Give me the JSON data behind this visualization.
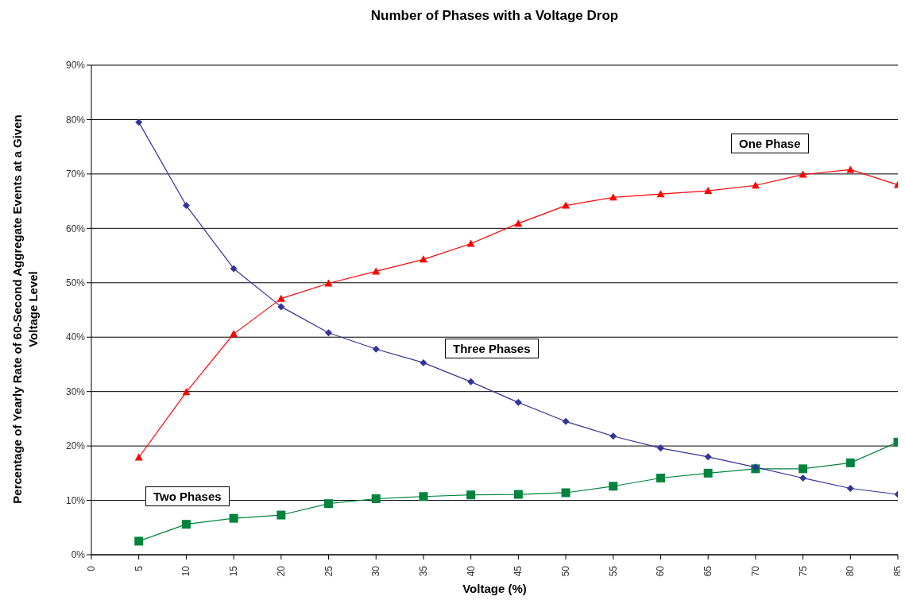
{
  "chart_data": {
    "type": "line",
    "title": "Number of Phases with a Voltage Drop",
    "xlabel": "Voltage (%)",
    "ylabel": "Percentage of Yearly Rate of 60-Second Aggregate Events at a Given Voltage Level",
    "x": [
      5,
      10,
      15,
      20,
      25,
      30,
      35,
      40,
      45,
      50,
      55,
      60,
      65,
      70,
      75,
      80,
      85
    ],
    "xlim": [
      0,
      85
    ],
    "xticks": [
      0,
      5,
      10,
      15,
      20,
      25,
      30,
      35,
      40,
      45,
      50,
      55,
      60,
      65,
      70,
      75,
      80,
      85
    ],
    "ylim": [
      0,
      90
    ],
    "yticks": [
      {
        "value": 0,
        "label": "0%"
      },
      {
        "value": 10,
        "label": "10%"
      },
      {
        "value": 20,
        "label": "20%"
      },
      {
        "value": 30,
        "label": "30%"
      },
      {
        "value": 40,
        "label": "40%"
      },
      {
        "value": 50,
        "label": "50%"
      },
      {
        "value": 60,
        "label": "60%"
      },
      {
        "value": 70,
        "label": "70%"
      },
      {
        "value": 80,
        "label": "80%"
      },
      {
        "value": 90,
        "label": "90%"
      }
    ],
    "grid": "y",
    "legend": false,
    "line_style": "solid",
    "series": [
      {
        "name": "One Phase",
        "color": "#ff0000",
        "marker": "triangle",
        "values": [
          17.9,
          29.9,
          40.6,
          47.1,
          49.9,
          52.1,
          54.3,
          57.2,
          60.9,
          64.2,
          65.7,
          66.3,
          66.9,
          67.9,
          69.9,
          70.8,
          68.0
        ]
      },
      {
        "name": "Three Phases",
        "color": "#333399",
        "marker": "diamond",
        "values": [
          79.5,
          64.2,
          52.6,
          45.6,
          40.8,
          37.8,
          35.3,
          31.8,
          28.0,
          24.5,
          21.8,
          19.6,
          18.0,
          16.1,
          14.1,
          12.2,
          11.1
        ]
      },
      {
        "name": "Two Phases",
        "color": "#00843d",
        "marker": "square",
        "values": [
          2.5,
          5.6,
          6.7,
          7.3,
          9.4,
          10.3,
          10.7,
          11.0,
          11.1,
          11.4,
          12.6,
          14.1,
          15.0,
          15.8,
          15.8,
          16.9,
          20.7
        ]
      }
    ]
  }
}
